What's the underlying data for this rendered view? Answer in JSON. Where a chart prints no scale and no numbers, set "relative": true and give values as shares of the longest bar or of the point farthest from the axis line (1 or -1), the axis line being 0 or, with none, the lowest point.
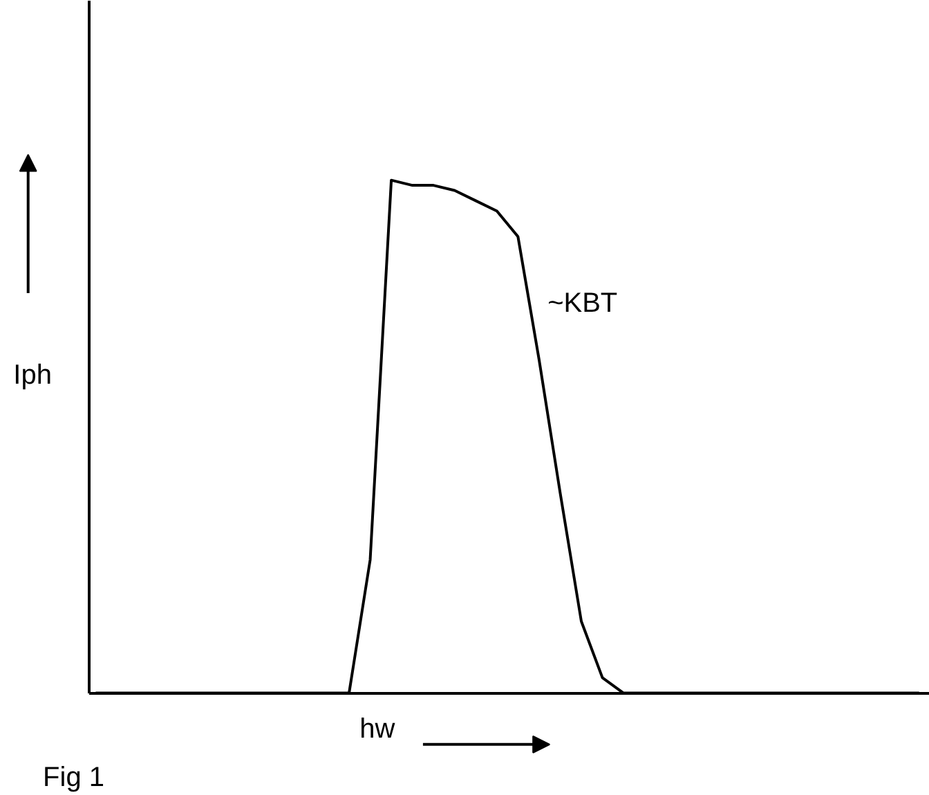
{
  "chart_data": {
    "type": "line",
    "relative": true,
    "xlabel": "hw",
    "ylabel": "Iph",
    "categories": [
      null,
      null,
      null,
      null,
      null,
      null,
      null,
      null,
      null,
      null,
      null,
      null,
      null,
      null,
      null,
      null,
      null,
      null,
      null,
      null,
      null,
      null,
      null,
      null,
      null,
      null,
      null,
      null,
      null,
      null,
      null,
      null,
      null,
      null,
      null,
      null,
      null,
      null,
      null,
      null
    ],
    "series": [
      {
        "color": "#000000",
        "values": [
          0,
          0,
          0,
          0,
          0,
          0,
          0,
          0,
          0,
          0,
          0,
          0,
          0,
          0.26,
          1,
          0.99,
          0.99,
          0.98,
          0.96,
          0.94,
          0.89,
          0.65,
          0.39,
          0.14,
          0.03,
          0,
          0,
          0,
          0,
          0,
          0,
          0,
          0,
          0,
          0,
          0,
          0,
          0,
          0,
          0
        ]
      }
    ],
    "annotations": [
      "~KBT",
      "Fig 1"
    ],
    "marker": "none",
    "line_style": "solid"
  }
}
